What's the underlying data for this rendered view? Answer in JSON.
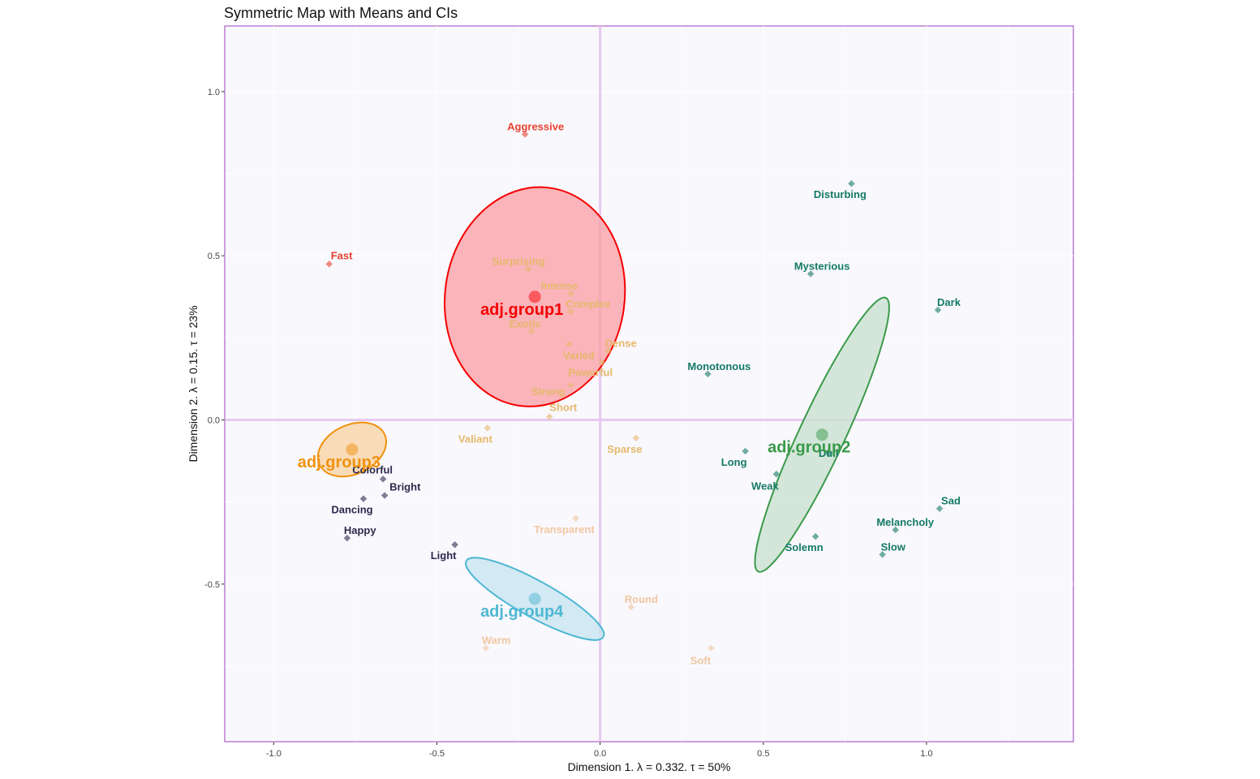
{
  "chart_data": {
    "type": "scatter",
    "title": "Symmetric Map with Means and CIs",
    "xlabel": "Dimension 1.   λ = 0.332.  τ = 50%",
    "ylabel": "Dimension 2.   λ = 0.15.  τ = 23%",
    "xlim": [
      -1.15,
      1.45
    ],
    "ylim": [
      -0.98,
      1.2
    ],
    "x_ticks": [
      -1.0,
      -0.5,
      0.0,
      0.5,
      1.0
    ],
    "x_tick_labels": [
      "-1.0",
      "-0.5",
      "0.0",
      "0.5",
      "1.0"
    ],
    "y_ticks": [
      -0.5,
      0.0,
      0.5,
      1.0
    ],
    "y_tick_labels": [
      "-0.5",
      "0.0",
      "0.5",
      "1.0"
    ],
    "grid": true,
    "colors": {
      "panel_background": "#f9f8fd",
      "panel_border": "#9b3fbf",
      "origin_lines": "#e6c9f0",
      "red": "#e8422f",
      "gold": "#e6b86a",
      "teal": "#147a65",
      "navy": "#2e2a4d",
      "peach": "#f0c7a0"
    },
    "points": [
      {
        "label": "Aggressive",
        "x": -0.23,
        "y": 0.87,
        "color": "#e8422f",
        "anchor": "start",
        "dx": -22,
        "dy": -5
      },
      {
        "label": "Fast",
        "x": -0.83,
        "y": 0.475,
        "color": "#e8422f",
        "anchor": "start",
        "dx": 2,
        "dy": -6
      },
      {
        "label": "Surprising",
        "x": -0.22,
        "y": 0.46,
        "color": "#e6b86a",
        "anchor": "middle",
        "dx": -12,
        "dy": -5
      },
      {
        "label": "Intense",
        "x": -0.09,
        "y": 0.385,
        "color": "#e6b86a",
        "anchor": "middle",
        "dx": -14,
        "dy": -5
      },
      {
        "label": "Complex",
        "x": -0.09,
        "y": 0.33,
        "color": "#e6b86a",
        "anchor": "start",
        "dx": -6,
        "dy": -5
      },
      {
        "label": "Exotic",
        "x": -0.21,
        "y": 0.27,
        "color": "#e6b86a",
        "anchor": "middle",
        "dx": -8,
        "dy": -5
      },
      {
        "label": "Varied",
        "x": -0.095,
        "y": 0.23,
        "color": "#e6b86a",
        "anchor": "middle",
        "dx": 12,
        "dy": 18
      },
      {
        "label": "Dense",
        "x": 0.025,
        "y": 0.21,
        "color": "#e6b86a",
        "anchor": "start",
        "dx": -4,
        "dy": -5
      },
      {
        "label": "Powerful",
        "x": 0.005,
        "y": 0.175,
        "color": "#e6b86a",
        "anchor": "middle",
        "dx": -14,
        "dy": 17
      },
      {
        "label": "Strong",
        "x": -0.09,
        "y": 0.105,
        "color": "#e6b86a",
        "anchor": "middle",
        "dx": -28,
        "dy": 12
      },
      {
        "label": "Short",
        "x": -0.155,
        "y": 0.01,
        "color": "#e6b86a",
        "anchor": "start",
        "dx": 0,
        "dy": -7
      },
      {
        "label": "Valiant",
        "x": -0.345,
        "y": -0.025,
        "color": "#e6b86a",
        "anchor": "middle",
        "dx": -15,
        "dy": 18
      },
      {
        "label": "Sparse",
        "x": 0.11,
        "y": -0.055,
        "color": "#e6b86a",
        "anchor": "middle",
        "dx": -14,
        "dy": 18
      },
      {
        "label": "Transparent",
        "x": -0.075,
        "y": -0.3,
        "color": "#f0c7a0",
        "anchor": "middle",
        "dx": -14,
        "dy": 18
      },
      {
        "label": "Round",
        "x": 0.095,
        "y": -0.57,
        "color": "#f0c7a0",
        "anchor": "start",
        "dx": -8,
        "dy": -5
      },
      {
        "label": "Warm",
        "x": -0.35,
        "y": -0.695,
        "color": "#f0c7a0",
        "anchor": "start",
        "dx": -5,
        "dy": -5
      },
      {
        "label": "Soft",
        "x": 0.34,
        "y": -0.695,
        "color": "#f0c7a0",
        "anchor": "middle",
        "dx": -13,
        "dy": 20
      },
      {
        "label": "Disturbing",
        "x": 0.77,
        "y": 0.72,
        "color": "#147a65",
        "anchor": "middle",
        "dx": -14,
        "dy": 18
      },
      {
        "label": "Mysterious",
        "x": 0.645,
        "y": 0.445,
        "color": "#147a65",
        "anchor": "middle",
        "dx": 14,
        "dy": -5
      },
      {
        "label": "Dark",
        "x": 1.035,
        "y": 0.335,
        "color": "#147a65",
        "anchor": "start",
        "dx": -1,
        "dy": -5
      },
      {
        "label": "Monotonous",
        "x": 0.33,
        "y": 0.14,
        "color": "#147a65",
        "anchor": "middle",
        "dx": 14,
        "dy": -5
      },
      {
        "label": "Long",
        "x": 0.445,
        "y": -0.095,
        "color": "#147a65",
        "anchor": "middle",
        "dx": -14,
        "dy": 18
      },
      {
        "label": "Weak",
        "x": 0.54,
        "y": -0.165,
        "color": "#147a65",
        "anchor": "middle",
        "dx": -14,
        "dy": 19
      },
      {
        "label": "Dull",
        "x": 0.7,
        "y": -0.1,
        "color": "#147a65",
        "anchor": "middle",
        "dx": 0,
        "dy": 5
      },
      {
        "label": "Sad",
        "x": 1.04,
        "y": -0.27,
        "color": "#147a65",
        "anchor": "start",
        "dx": 2,
        "dy": -5
      },
      {
        "label": "Melancholy",
        "x": 0.905,
        "y": -0.335,
        "color": "#147a65",
        "anchor": "middle",
        "dx": 12,
        "dy": -5
      },
      {
        "label": "Solemn",
        "x": 0.66,
        "y": -0.355,
        "color": "#147a65",
        "anchor": "middle",
        "dx": -14,
        "dy": 18
      },
      {
        "label": "Slow",
        "x": 0.865,
        "y": -0.41,
        "color": "#147a65",
        "anchor": "start",
        "dx": -2,
        "dy": -5
      },
      {
        "label": "Colorful",
        "x": -0.665,
        "y": -0.18,
        "color": "#2e2a4d",
        "anchor": "middle",
        "dx": -13,
        "dy": -7
      },
      {
        "label": "Bright",
        "x": -0.66,
        "y": -0.23,
        "color": "#2e2a4d",
        "anchor": "start",
        "dx": 6,
        "dy": -6
      },
      {
        "label": "Dancing",
        "x": -0.725,
        "y": -0.24,
        "color": "#2e2a4d",
        "anchor": "middle",
        "dx": -14,
        "dy": 18
      },
      {
        "label": "Happy",
        "x": -0.775,
        "y": -0.36,
        "color": "#2e2a4d",
        "anchor": "start",
        "dx": -4,
        "dy": -5
      },
      {
        "label": "Light",
        "x": -0.445,
        "y": -0.38,
        "color": "#2e2a4d",
        "anchor": "middle",
        "dx": -14,
        "dy": 18
      }
    ],
    "groups": [
      {
        "name": "adj.group1",
        "x": -0.2,
        "y": 0.375,
        "color": "#f50000",
        "fill": "#f99da3",
        "ellipse": {
          "rx": 0.275,
          "ry": 0.335,
          "angle": 8
        }
      },
      {
        "name": "adj.group2",
        "x": 0.68,
        "y": -0.045,
        "color": "#3a9a4a",
        "fill": "#c5e0cc",
        "ellipse": {
          "rx": 0.07,
          "ry": 0.46,
          "angle": 25
        }
      },
      {
        "name": "adj.group3",
        "x": -0.76,
        "y": -0.09,
        "color": "#f0920f",
        "fill": "#f7d29f",
        "ellipse": {
          "rx": 0.11,
          "ry": 0.075,
          "angle": -25
        }
      },
      {
        "name": "adj.group4",
        "x": -0.2,
        "y": -0.545,
        "color": "#4fb8d3",
        "fill": "#c6e4ef",
        "ellipse": {
          "rx": 0.24,
          "ry": 0.055,
          "angle": 29
        }
      }
    ]
  }
}
